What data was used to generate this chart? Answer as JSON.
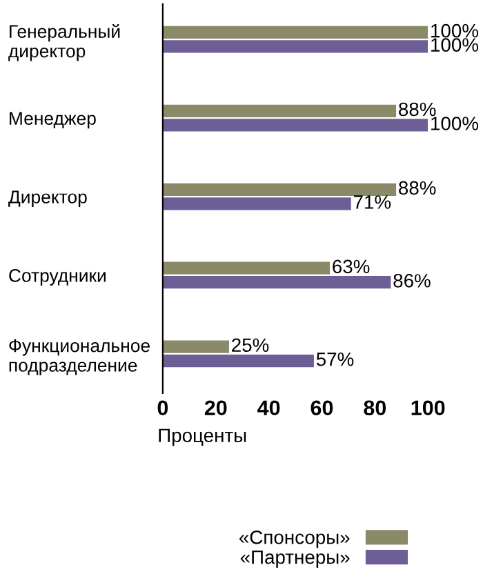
{
  "chart_data": {
    "type": "bar",
    "orientation": "horizontal",
    "categories": [
      "Генеральный\nдиректор",
      "Менеджер",
      "Директор",
      "Сотрудники",
      "Функциональное\nподразделение"
    ],
    "series": [
      {
        "name": "«Спонсоры»",
        "color": "#8a8a68",
        "values": [
          100,
          88,
          88,
          63,
          25
        ],
        "value_labels": [
          "100%",
          "88%",
          "88%",
          "63%",
          "25%"
        ]
      },
      {
        "name": "«Партнеры»",
        "color": "#6e5e96",
        "values": [
          100,
          100,
          71,
          86,
          57
        ],
        "value_labels": [
          "100%",
          "100%",
          "71%",
          "86%",
          "57%"
        ]
      }
    ],
    "xlim": [
      0,
      100
    ],
    "xticks": [
      0,
      20,
      40,
      60,
      80,
      100
    ],
    "xlabel": "Проценты",
    "legend": "bottom right",
    "grid": false
  }
}
